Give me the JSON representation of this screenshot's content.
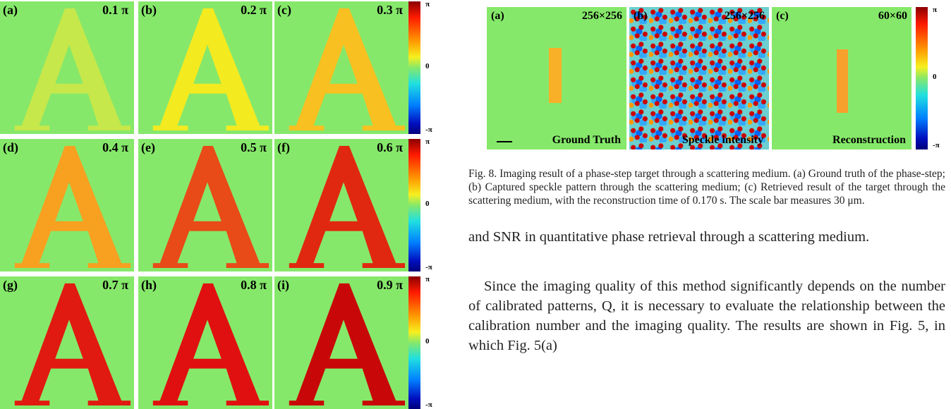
{
  "figure_left": {
    "panels": [
      {
        "label": "(a)",
        "phase": "0.1 π",
        "color": "#c6e84a"
      },
      {
        "label": "(b)",
        "phase": "0.2 π",
        "color": "#f4ea20"
      },
      {
        "label": "(c)",
        "phase": "0.3 π",
        "color": "#f8c020"
      },
      {
        "label": "(d)",
        "phase": "0.4 π",
        "color": "#f8a020"
      },
      {
        "label": "(e)",
        "phase": "0.5 π",
        "color": "#e84a18"
      },
      {
        "label": "(f)",
        "phase": "0.6 π",
        "color": "#e02810"
      },
      {
        "label": "(g)",
        "phase": "0.7 π",
        "color": "#e01a10"
      },
      {
        "label": "(h)",
        "phase": "0.8 π",
        "color": "#e01010"
      },
      {
        "label": "(i)",
        "phase": "0.9 π",
        "color": "#c80808"
      }
    ],
    "colorbars": [
      {
        "ticks": [
          "π",
          "0",
          "-π"
        ]
      },
      {
        "ticks": [
          "π",
          "0",
          "-π"
        ]
      },
      {
        "ticks": [
          "π",
          "0",
          "-π"
        ]
      }
    ]
  },
  "figure_right": {
    "panels": [
      {
        "label": "(a)",
        "size": "256×256",
        "caption": "Ground Truth"
      },
      {
        "label": "(b)",
        "size": "256×256",
        "caption": "Speckle intensity"
      },
      {
        "label": "(c)",
        "size": "60×60",
        "caption": "Reconstruction"
      }
    ],
    "colorbar": {
      "ticks": [
        "π",
        "0",
        "-π"
      ]
    },
    "caption": "Fig. 8.    Imaging result of a phase-step target through a scattering medium. (a) Ground truth of the phase-step; (b) Captured speckle pattern through the scattering medium; (c) Retrieved result of the target through the scattering medium, with the reconstruction time of 0.170 s. The scale bar measures 30 μm."
  },
  "body": {
    "paragraphs": [
      "and SNR in quantitative phase retrieval through a scattering medium.",
      "Since the imaging quality of this method significantly depends on the number of calibrated patterns, Q, it is necessary to evaluate the relationship between the calibration number and the imaging quality. The results are shown in Fig. 5, in which Fig. 5(a)"
    ]
  }
}
